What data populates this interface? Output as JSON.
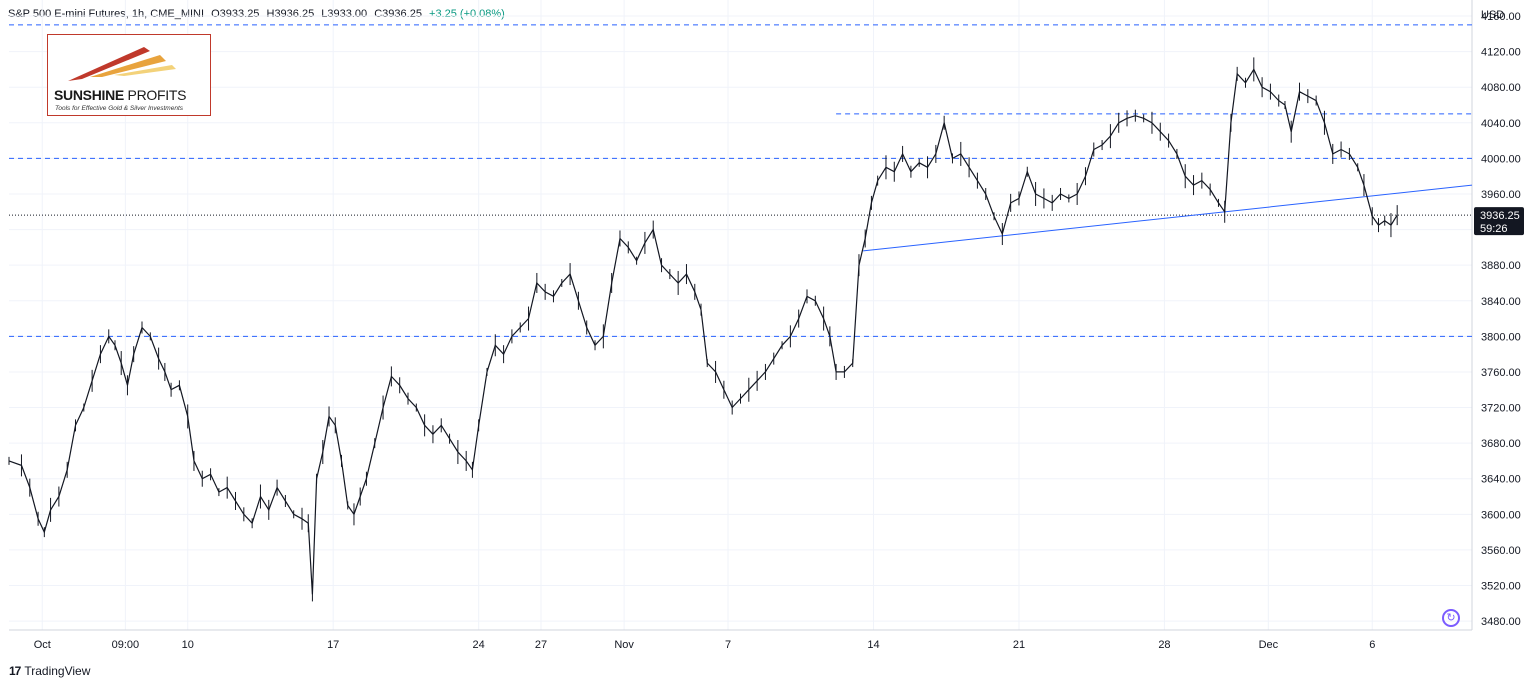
{
  "header": {
    "symbol": "S&P 500 E-mini Futures, 1h, CME_MINI",
    "open": "O3933.25",
    "high": "H3936.25",
    "low": "L3933.00",
    "close": "C3936.25",
    "change": "+3.25 (+0.08%)"
  },
  "logo": {
    "brand_bold": "SUNSHINE",
    "brand_light": "PROFITS",
    "tagline": "Tools for Effective Gold & Silver Investments"
  },
  "footer": {
    "brand": "TradingView",
    "mark": "17"
  },
  "icons": {
    "refresh": "refresh-icon"
  },
  "chart_data": {
    "type": "line",
    "currency": "USD",
    "y_ticks": [
      3480,
      3520,
      3560,
      3600,
      3640,
      3680,
      3720,
      3760,
      3800,
      3840,
      3880,
      3920,
      3960,
      4000,
      4040,
      4080,
      4120,
      4160
    ],
    "ylim": [
      3470,
      4178
    ],
    "x_tick_labels": [
      "Oct",
      "09:00",
      "10",
      "17",
      "24",
      "27",
      "Nov",
      "7",
      "14",
      "21",
      "28",
      "Dec",
      "6"
    ],
    "x_tick_positions": [
      0.0,
      4.0,
      7.0,
      14.0,
      21.0,
      24.0,
      28.0,
      33.0,
      40.0,
      47.0,
      54.0,
      59.0,
      64.0
    ],
    "xlim": [
      -1.6,
      68.8
    ],
    "last_price": "3936.25",
    "countdown": "59:26",
    "horizontal_levels": [
      {
        "value": 4150,
        "style": "dashed",
        "color": "#2962ff",
        "from": -1.6
      },
      {
        "value": 4050,
        "style": "dashed",
        "color": "#2962ff",
        "from": 38.2
      },
      {
        "value": 4000,
        "style": "dashed",
        "color": "#2962ff",
        "from": -1.6
      },
      {
        "value": 3800,
        "style": "dashed",
        "color": "#2962ff",
        "from": -1.6
      },
      {
        "value": 3936.25,
        "style": "dotted",
        "color": "#131722",
        "from": -1.6
      }
    ],
    "trendline": {
      "x1": 39.5,
      "y1": 3896,
      "x2": 68.8,
      "y2": 3970,
      "color": "#2962ff"
    },
    "series": [
      {
        "values": [
          [
            -1.6,
            3660
          ],
          [
            -1.0,
            3655
          ],
          [
            -0.6,
            3630
          ],
          [
            -0.2,
            3595
          ],
          [
            0.1,
            3580
          ],
          [
            0.4,
            3605
          ],
          [
            0.8,
            3620
          ],
          [
            1.2,
            3650
          ],
          [
            1.6,
            3700
          ],
          [
            2.0,
            3720
          ],
          [
            2.4,
            3750
          ],
          [
            2.8,
            3780
          ],
          [
            3.2,
            3800
          ],
          [
            3.5,
            3790
          ],
          [
            3.8,
            3770
          ],
          [
            4.1,
            3745
          ],
          [
            4.4,
            3780
          ],
          [
            4.8,
            3810
          ],
          [
            5.2,
            3800
          ],
          [
            5.6,
            3775
          ],
          [
            5.9,
            3760
          ],
          [
            6.2,
            3740
          ],
          [
            6.6,
            3745
          ],
          [
            7.0,
            3710
          ],
          [
            7.3,
            3660
          ],
          [
            7.7,
            3640
          ],
          [
            8.1,
            3645
          ],
          [
            8.5,
            3625
          ],
          [
            8.9,
            3630
          ],
          [
            9.3,
            3615
          ],
          [
            9.7,
            3600
          ],
          [
            10.1,
            3590
          ],
          [
            10.5,
            3620
          ],
          [
            10.9,
            3605
          ],
          [
            11.3,
            3630
          ],
          [
            11.7,
            3615
          ],
          [
            12.1,
            3600
          ],
          [
            12.5,
            3595
          ],
          [
            12.8,
            3590
          ],
          [
            13.0,
            3510
          ],
          [
            13.2,
            3640
          ],
          [
            13.5,
            3670
          ],
          [
            13.8,
            3710
          ],
          [
            14.1,
            3700
          ],
          [
            14.4,
            3660
          ],
          [
            14.7,
            3610
          ],
          [
            15.0,
            3600
          ],
          [
            15.3,
            3620
          ],
          [
            15.6,
            3640
          ],
          [
            16.0,
            3680
          ],
          [
            16.4,
            3720
          ],
          [
            16.8,
            3755
          ],
          [
            17.2,
            3745
          ],
          [
            17.6,
            3730
          ],
          [
            18.0,
            3720
          ],
          [
            18.4,
            3700
          ],
          [
            18.8,
            3690
          ],
          [
            19.2,
            3700
          ],
          [
            19.6,
            3685
          ],
          [
            20.0,
            3670
          ],
          [
            20.4,
            3660
          ],
          [
            20.7,
            3650
          ],
          [
            21.0,
            3700
          ],
          [
            21.4,
            3760
          ],
          [
            21.8,
            3790
          ],
          [
            22.2,
            3780
          ],
          [
            22.6,
            3800
          ],
          [
            23.0,
            3810
          ],
          [
            23.4,
            3820
          ],
          [
            23.8,
            3860
          ],
          [
            24.2,
            3850
          ],
          [
            24.6,
            3845
          ],
          [
            25.0,
            3860
          ],
          [
            25.4,
            3870
          ],
          [
            25.8,
            3840
          ],
          [
            26.2,
            3810
          ],
          [
            26.6,
            3790
          ],
          [
            27.0,
            3800
          ],
          [
            27.4,
            3860
          ],
          [
            27.8,
            3910
          ],
          [
            28.2,
            3900
          ],
          [
            28.6,
            3885
          ],
          [
            29.0,
            3905
          ],
          [
            29.4,
            3920
          ],
          [
            29.8,
            3880
          ],
          [
            30.2,
            3870
          ],
          [
            30.6,
            3860
          ],
          [
            31.0,
            3870
          ],
          [
            31.4,
            3850
          ],
          [
            31.7,
            3830
          ],
          [
            32.0,
            3770
          ],
          [
            32.4,
            3760
          ],
          [
            32.8,
            3740
          ],
          [
            33.2,
            3720
          ],
          [
            33.6,
            3730
          ],
          [
            34.0,
            3740
          ],
          [
            34.4,
            3750
          ],
          [
            34.8,
            3760
          ],
          [
            35.2,
            3775
          ],
          [
            35.6,
            3790
          ],
          [
            36.0,
            3800
          ],
          [
            36.4,
            3820
          ],
          [
            36.8,
            3845
          ],
          [
            37.2,
            3840
          ],
          [
            37.6,
            3820
          ],
          [
            37.9,
            3800
          ],
          [
            38.2,
            3760
          ],
          [
            38.6,
            3760
          ],
          [
            39.0,
            3770
          ],
          [
            39.3,
            3880
          ],
          [
            39.6,
            3910
          ],
          [
            39.9,
            3950
          ],
          [
            40.2,
            3975
          ],
          [
            40.6,
            3990
          ],
          [
            41.0,
            3985
          ],
          [
            41.4,
            4005
          ],
          [
            41.8,
            3985
          ],
          [
            42.2,
            3995
          ],
          [
            42.6,
            3990
          ],
          [
            43.0,
            4005
          ],
          [
            43.4,
            4040
          ],
          [
            43.8,
            4000
          ],
          [
            44.2,
            4005
          ],
          [
            44.6,
            3990
          ],
          [
            45.0,
            3975
          ],
          [
            45.4,
            3960
          ],
          [
            45.8,
            3935
          ],
          [
            46.2,
            3915
          ],
          [
            46.6,
            3950
          ],
          [
            47.0,
            3955
          ],
          [
            47.4,
            3985
          ],
          [
            47.8,
            3960
          ],
          [
            48.2,
            3955
          ],
          [
            48.6,
            3950
          ],
          [
            49.0,
            3960
          ],
          [
            49.4,
            3955
          ],
          [
            49.8,
            3960
          ],
          [
            50.2,
            3980
          ],
          [
            50.6,
            4010
          ],
          [
            51.0,
            4015
          ],
          [
            51.4,
            4025
          ],
          [
            51.8,
            4040
          ],
          [
            52.2,
            4045
          ],
          [
            52.6,
            4048
          ],
          [
            53.0,
            4045
          ],
          [
            53.4,
            4040
          ],
          [
            53.8,
            4030
          ],
          [
            54.2,
            4020
          ],
          [
            54.6,
            4005
          ],
          [
            55.0,
            3980
          ],
          [
            55.4,
            3970
          ],
          [
            55.8,
            3975
          ],
          [
            56.2,
            3965
          ],
          [
            56.6,
            3950
          ],
          [
            56.9,
            3940
          ],
          [
            57.2,
            4040
          ],
          [
            57.5,
            4095
          ],
          [
            57.9,
            4085
          ],
          [
            58.3,
            4100
          ],
          [
            58.7,
            4080
          ],
          [
            59.1,
            4075
          ],
          [
            59.5,
            4065
          ],
          [
            59.8,
            4060
          ],
          [
            60.1,
            4030
          ],
          [
            60.5,
            4075
          ],
          [
            60.9,
            4070
          ],
          [
            61.3,
            4065
          ],
          [
            61.7,
            4040
          ],
          [
            62.1,
            4005
          ],
          [
            62.5,
            4010
          ],
          [
            62.9,
            4005
          ],
          [
            63.3,
            3990
          ],
          [
            63.6,
            3970
          ],
          [
            64.0,
            3935
          ],
          [
            64.3,
            3925
          ],
          [
            64.6,
            3930
          ],
          [
            64.9,
            3925
          ],
          [
            65.2,
            3936.25
          ]
        ]
      }
    ]
  }
}
